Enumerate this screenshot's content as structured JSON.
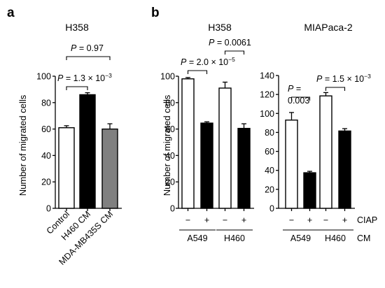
{
  "colors": {
    "white": "#ffffff",
    "black": "#000000",
    "gray": "#808080"
  },
  "chart_data": [
    {
      "type": "bar",
      "panel": "a",
      "title": "H358",
      "ylabel": "Number of migrated cells",
      "ylim": [
        0,
        100
      ],
      "yticks": [
        0,
        20,
        40,
        60,
        80,
        100
      ],
      "categories": [
        "Control",
        "H460 CM",
        "MDA-MB435S CM"
      ],
      "values": [
        61,
        86,
        60
      ],
      "errors": [
        1.5,
        1.5,
        4
      ],
      "bar_colors": [
        "white",
        "black",
        "gray"
      ],
      "annotations": [
        {
          "from": 0,
          "to": 1,
          "text": "P = 1.3 × 10",
          "exp": "−3"
        },
        {
          "from": 0,
          "to": 2,
          "text": "P = 0.97",
          "exp": ""
        }
      ]
    },
    {
      "type": "bar",
      "panel": "b",
      "title": "H358",
      "ylabel": "Number of migrated cells",
      "ylim": [
        0,
        100
      ],
      "yticks": [
        0,
        20,
        40,
        60,
        80,
        100
      ],
      "categories": [
        "A549 −",
        "A549 +",
        "H460 −",
        "H460 +"
      ],
      "values": [
        98,
        64.5,
        91,
        60.5
      ],
      "errors": [
        1,
        1,
        4.5,
        3.5
      ],
      "bar_colors": [
        "white",
        "black",
        "white",
        "black"
      ],
      "annotations": [
        {
          "from": 0,
          "to": 1,
          "text": "P = 2.0 × 10",
          "exp": "−5"
        },
        {
          "from": 2,
          "to": 3,
          "text": "P = 0.0061",
          "exp": ""
        }
      ]
    },
    {
      "type": "bar",
      "title": "MIAPaca-2",
      "ylim": [
        0,
        140
      ],
      "yticks": [
        0,
        20,
        40,
        60,
        80,
        100,
        120,
        140
      ],
      "categories": [
        "A549 −",
        "A549 +",
        "H460 −",
        "H460 +"
      ],
      "values": [
        93,
        37.5,
        118.5,
        81.5
      ],
      "errors": [
        8,
        1.5,
        3.5,
        2.5
      ],
      "bar_colors": [
        "white",
        "black",
        "white",
        "black"
      ],
      "annotations": [
        {
          "from": 0,
          "to": 1,
          "text": "P =",
          "text2": "0.003",
          "exp": ""
        },
        {
          "from": 2,
          "to": 3,
          "text": "P = 1.5 × 10",
          "exp": "−3"
        }
      ]
    }
  ],
  "ciap_signs": [
    "−",
    "+",
    "−",
    "+"
  ],
  "ciap_label": "CIAP",
  "cm_groups": [
    "A549",
    "H460"
  ],
  "cm_label": "CM"
}
